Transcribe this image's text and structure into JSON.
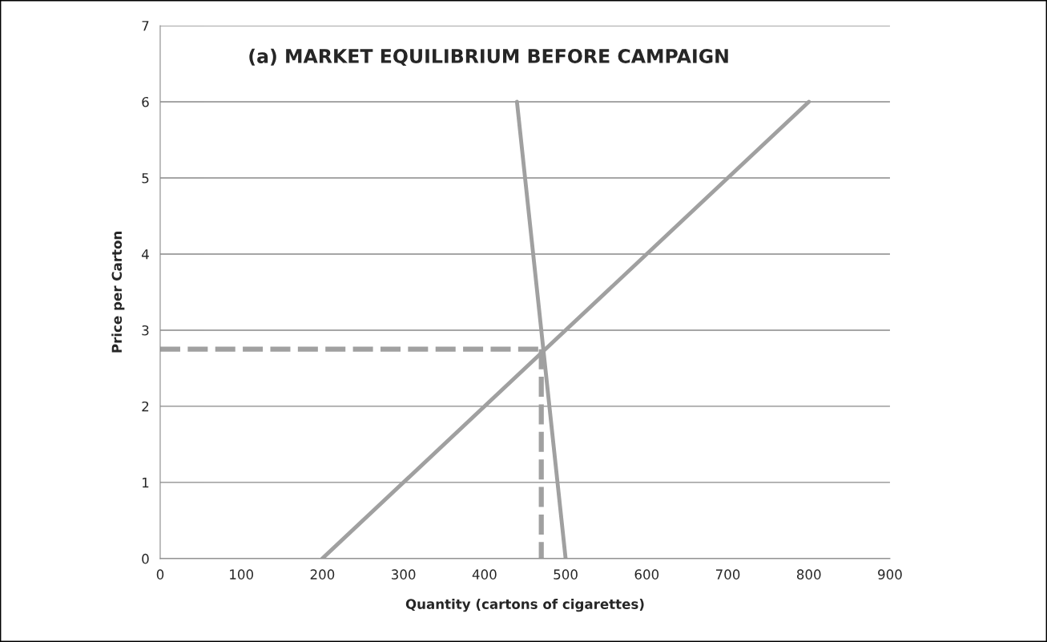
{
  "chart_data": {
    "type": "line",
    "title": "(a) MARKET EQUILIBRIUM BEFORE CAMPAIGN",
    "xlabel": "Quantity (cartons of cigarettes)",
    "ylabel": "Price per Carton",
    "series": [
      {
        "x": [
          200,
          800
        ],
        "values": [
          0,
          6
        ],
        "color": "#a0a0a0",
        "line_style": "solid"
      },
      {
        "x": [
          440,
          500
        ],
        "values": [
          6,
          0
        ],
        "color": "#a0a0a0",
        "line_style": "solid"
      },
      {
        "x": [
          0,
          470
        ],
        "values": [
          2.75,
          2.75
        ],
        "color": "#a0a0a0",
        "line_style": "dashed"
      },
      {
        "x": [
          470,
          470
        ],
        "values": [
          2.75,
          0
        ],
        "color": "#a0a0a0",
        "line_style": "dashed"
      }
    ],
    "xlim": [
      0,
      900
    ],
    "xticks": [
      0,
      100,
      200,
      300,
      400,
      500,
      600,
      700,
      800,
      900
    ],
    "ylim": [
      0,
      7
    ],
    "yticks": [
      0,
      1,
      2,
      3,
      4,
      5,
      6,
      7
    ],
    "grid": "y",
    "marker": "none"
  }
}
